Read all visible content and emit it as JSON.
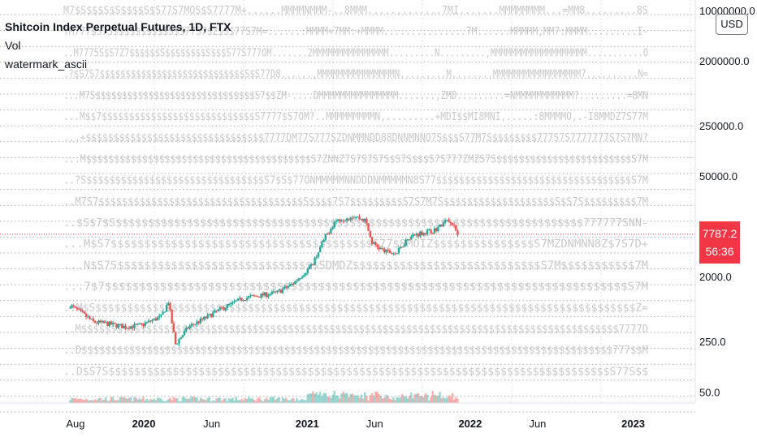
{
  "legend": {
    "title": "Shitcoin Index Perpetual Futures, 1D, FTX",
    "indicator_1": "Vol",
    "indicator_2": "watermark_ascii"
  },
  "currency_button": "USD",
  "price_badge": {
    "price": "7787.2",
    "countdown": "56:36"
  },
  "colors": {
    "up": "#26a69a",
    "down": "#ef5350",
    "price_line": "#f23645",
    "grid": "#9e9e9e",
    "watermark": "#c9c9c9"
  },
  "watermark_lines": [
    "M7$S$$$S$S$$$$S$S77S7MOS$S7777M+......MMMMNMMM-..8MMM.............7MI.......MMMMMMMM...=MM8.........8S",
    "7M777$S7S$$$$$$$$$$S$S77S7$Z$S$77S7M=......:MMMM+7MM:+MMMM...............7M......MMMMM,MM7:MMMM.........I-",
    "..M7775S$S7Z7$$$$$$S$$$$$$$$S$$$S77S777OM.......2MMMMMMMMMMMMMMM.........N.........,MMMMMMMMMMMMMMMMMMM...........O",
    ".?$S7S7$$$$$$$$$$$$$$$$$$$$$$$$$$$$S$S77D8......,MMMMMMMMMMMMMMMN.........M........MMMMMMMMMMMMMMMMM7..........N=",
    "...M7S$$$$$$$$$$$$$$$$$$$$$$$$$$$$$$S7$$ZM-....DMMMMMMMMMMMMMMM.......,ZMD.........=NMMMMMMMMMMM?.........=8MN",
    "...M$$7$$$$$$$$$$$$$$$$$$$$$$$$$$$$S7777$S7OM?..MMMMMMMMMN,.........+MDI$$MI8MNI,.....:8MMMMO,.-I8MMDZ7S77M",
    "...+$$$$$$$$$$$$$$$$$$$$$$$$$$$$$$$$7777DM77S777SZDNMMNDD88DNNMNNO7S$$$S77M7S$$$$$$$$777S7S7777777S7S7MN?",
    "...M$$$$$$$$$$$$$$$$$$$$$$$$$$$$$$$$$$$$$$$$S7ZNNZ7S7S7S7S$S7S$$$S7S777ZMZS7S$$$$$$$$$$$$$$$$$$$$$$$$S7M",
    "..?S$$$$$$$$$$$$$$$$$$$$$$$$$$$$$$$S7$S$77ONMMMMMNNDDDNMMMMMN8S77$$$$$$$$$$$$$$$$$$$$$$$$$$$$$$$$$$S7M",
    "..M7S7$$$$$$$$$$$$$$$$$$$$$$$$$$$$$$$$$$$S$$$$7S7$$$$$$$$$S7S7M7S$$$$$$$$$$$$$$$$$$$S$S7S$$$$$$$$$7M",
    "..$S$7$S$$$$$$$$$$$$$$$$$$$$$$$$$$$$$$$$$$$$$$$$$$$$$$$$$$$$$$$$$$$$$$$$$$$$$$$$777777SNN-",
    "...M$S7$$$$$$$$$$$$$$$$$$$$$$$$$$$$$$$$$$$$$$$S77$8MOIZ$$$$$$$$$$$$$$$S7MZDNMNN8Z$7S7D+",
    "...N$S7S$$$$$$$$$$$$$$$$$$$$$$$$$$$$$$SDMDZ$$$$$$$$$$$$$$$$$$$$$$$$$$$$S7M$$$$$$$$$$$7M",
    "...7$7$$$$$$$$$$$$$$$$$$$$$$$$$$$$$$$$$$$$$$$$$$$$$$$$$$$$$$$$$$$$$$$$$$$$$$$$$$$$S7M",
    "..M$S$$$$$$$$$$$$$$$$$$$$$$$$$$$$$$$$$$$$$$$$$$$$$$$$$$$$$$$$$$$$$$$$$$$$$$$$$$$$$$$$$$$$$Z=",
    "..M$$$$$$$$$$$$$$$$$$$$$$$$$$$$$$$$$$$$$$$$$$$$$$$$$$$$$$$$$$$$$$$$$$$$$$$$$$$$$$$$$$$$$$$$$$$7777D",
    "..D$$$$$$$$$$$$$$$$$$$$$$$$$$$$$$$$$$$$$$$$$$$$$$$$$$$$$$$$$$$$$$$$$$$$$$$$$$$$$$$$$$$$$$$$$777$$M",
    "..D$S7S$$$$$$$$$$$$$$$$$$$$$$$$$$$$$$$$$$$$$$$$$$$$$$$$$$$$$$$$$$$$$$$$$$$$$$$$$$$$$$S77S$$"
  ],
  "chart_data": {
    "type": "candlestick",
    "title": "Shitcoin Index Perpetual Futures, 1D, FTX",
    "y_scale": "log",
    "y_ticks": [
      "10000000.0",
      "2000000.0",
      "250000.0",
      "50000.0",
      "2000.0",
      "250.0",
      "50.0"
    ],
    "y_tick_values": [
      10000000,
      2000000,
      250000,
      50000,
      2000,
      250,
      50
    ],
    "x_ticks": [
      {
        "label": "Aug",
        "date": "2019-08-01",
        "bold": false
      },
      {
        "label": "2020",
        "date": "2020-01-01",
        "bold": true
      },
      {
        "label": "Jun",
        "date": "2020-06-01",
        "bold": false
      },
      {
        "label": "2021",
        "date": "2021-01-01",
        "bold": true
      },
      {
        "label": "Jun",
        "date": "2021-06-01",
        "bold": false
      },
      {
        "label": "2022",
        "date": "2022-01-01",
        "bold": true
      },
      {
        "label": "Jun",
        "date": "2022-06-01",
        "bold": false
      },
      {
        "label": "2023",
        "date": "2023-01-01",
        "bold": true
      }
    ],
    "x_range": [
      "2019-02-13",
      "2023-05-20"
    ],
    "y_range": [
      35,
      14000000
    ],
    "last_price": 7787.2,
    "price_path": [
      {
        "date": "2019-07-20",
        "close": 800
      },
      {
        "date": "2019-08-15",
        "close": 620
      },
      {
        "date": "2019-09-10",
        "close": 470
      },
      {
        "date": "2019-10-15",
        "close": 440
      },
      {
        "date": "2019-11-20",
        "close": 400
      },
      {
        "date": "2019-12-25",
        "close": 420
      },
      {
        "date": "2020-02-10",
        "close": 560
      },
      {
        "date": "2020-02-25",
        "close": 900
      },
      {
        "date": "2020-03-12",
        "close": 230
      },
      {
        "date": "2020-04-10",
        "close": 400
      },
      {
        "date": "2020-05-15",
        "close": 520
      },
      {
        "date": "2020-06-20",
        "close": 700
      },
      {
        "date": "2020-08-10",
        "close": 1000
      },
      {
        "date": "2020-09-20",
        "close": 1100
      },
      {
        "date": "2020-10-25",
        "close": 1200
      },
      {
        "date": "2020-11-30",
        "close": 1600
      },
      {
        "date": "2021-01-10",
        "close": 2800
      },
      {
        "date": "2021-02-10",
        "close": 7000
      },
      {
        "date": "2021-03-05",
        "close": 12000
      },
      {
        "date": "2021-04-15",
        "close": 14000
      },
      {
        "date": "2021-05-12",
        "close": 12000
      },
      {
        "date": "2021-05-25",
        "close": 6000
      },
      {
        "date": "2021-06-22",
        "close": 4500
      },
      {
        "date": "2021-07-20",
        "close": 4200
      },
      {
        "date": "2021-08-15",
        "close": 7000
      },
      {
        "date": "2021-09-10",
        "close": 8000
      },
      {
        "date": "2021-10-15",
        "close": 9000
      },
      {
        "date": "2021-11-10",
        "close": 12000
      },
      {
        "date": "2021-11-25",
        "close": 10000
      },
      {
        "date": "2021-12-04",
        "close": 7787.2
      }
    ]
  }
}
